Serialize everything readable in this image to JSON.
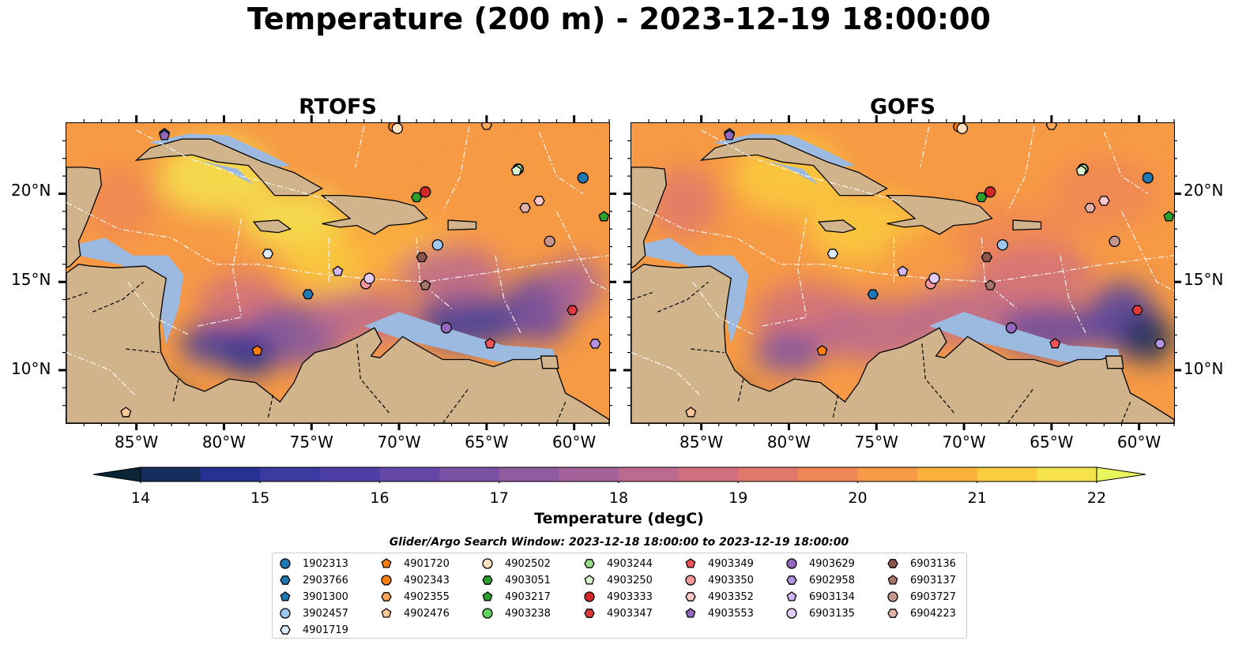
{
  "title": "Temperature (200 m) - 2023-12-19 18:00:00",
  "panels": [
    {
      "title": "RTOFS"
    },
    {
      "title": "GOFS"
    }
  ],
  "lat_ticks": [
    "20°N",
    "15°N",
    "10°N"
  ],
  "lon_ticks": [
    "85°W",
    "80°W",
    "75°W",
    "70°W",
    "65°W",
    "60°W"
  ],
  "colors": {
    "land": "#d2b48c",
    "shelf": "#9cb9e0",
    "colormap": [
      "#0a2536",
      "#142d5c",
      "#263192",
      "#3b3aa1",
      "#4e3fa6",
      "#6447a6",
      "#7a51a4",
      "#8f5aa0",
      "#a5619a",
      "#bb6a8f",
      "#d0707e",
      "#e0786b",
      "#ee8656",
      "#f79a45",
      "#fbb23d",
      "#f9cb3d",
      "#f5e24c",
      "#e8f55c"
    ]
  },
  "colorbar": {
    "ticks": [
      "14",
      "15",
      "16",
      "17",
      "18",
      "19",
      "20",
      "21",
      "22"
    ],
    "label": "Temperature (degC)"
  },
  "legend": {
    "title": "Glider/Argo Search Window: 2023-12-18 18:00:00 to 2023-12-19 18:00:00",
    "items": [
      {
        "label": "1902313",
        "marker": "circle",
        "color": "#1f77b4"
      },
      {
        "label": "2903766",
        "marker": "hexagon",
        "color": "#1f77b4"
      },
      {
        "label": "3901300",
        "marker": "pentagon",
        "color": "#1f77b4"
      },
      {
        "label": "3902457",
        "marker": "circle",
        "color": "#9ec8f0"
      },
      {
        "label": "4901719",
        "marker": "hexagon",
        "color": "#dcecff"
      },
      {
        "label": "4901720",
        "marker": "pentagon",
        "color": "#ff7f0e"
      },
      {
        "label": "4902343",
        "marker": "circle",
        "color": "#ff7f0e"
      },
      {
        "label": "4902355",
        "marker": "hexagon",
        "color": "#ffa55a"
      },
      {
        "label": "4902476",
        "marker": "pentagon",
        "color": "#ffc896"
      },
      {
        "label": "4902502",
        "marker": "circle",
        "color": "#ffe0c0"
      },
      {
        "label": "4903051",
        "marker": "hexagon",
        "color": "#2ca02c"
      },
      {
        "label": "4903217",
        "marker": "pentagon",
        "color": "#2ca02c"
      },
      {
        "label": "4903238",
        "marker": "circle",
        "color": "#5fd35f"
      },
      {
        "label": "4903244",
        "marker": "hexagon",
        "color": "#98df8a"
      },
      {
        "label": "4903250",
        "marker": "pentagon",
        "color": "#d6f5cf"
      },
      {
        "label": "4903333",
        "marker": "circle",
        "color": "#d62728"
      },
      {
        "label": "4903347",
        "marker": "hexagon",
        "color": "#e0393b"
      },
      {
        "label": "4903349",
        "marker": "pentagon",
        "color": "#f0545a"
      },
      {
        "label": "4903350",
        "marker": "circle",
        "color": "#f4979a"
      },
      {
        "label": "4903352",
        "marker": "hexagon",
        "color": "#ffc7c7"
      },
      {
        "label": "4903553",
        "marker": "pentagon",
        "color": "#9467bd"
      },
      {
        "label": "4903629",
        "marker": "circle",
        "color": "#9467bd"
      },
      {
        "label": "6902958",
        "marker": "hexagon",
        "color": "#b592df"
      },
      {
        "label": "6903134",
        "marker": "pentagon",
        "color": "#d2b5f0"
      },
      {
        "label": "6903135",
        "marker": "circle",
        "color": "#e4ccfa"
      },
      {
        "label": "6903136",
        "marker": "hexagon",
        "color": "#8c564b"
      },
      {
        "label": "6903137",
        "marker": "pentagon",
        "color": "#a8756b"
      },
      {
        "label": "6903727",
        "marker": "circle",
        "color": "#c4968d"
      },
      {
        "label": "6904223",
        "marker": "hexagon",
        "color": "#e2b2aa"
      }
    ]
  },
  "chart_data": {
    "type": "heatmap",
    "variable": "Temperature",
    "depth": "200 m",
    "time": "2023-12-19 18:00:00",
    "units": "degC",
    "vmin": 14,
    "vmax": 22,
    "xlim": [
      -89,
      -58
    ],
    "ylim": [
      7,
      24
    ],
    "panels": [
      "RTOFS",
      "GOFS"
    ],
    "x_ticks": [
      -85,
      -80,
      -75,
      -70,
      -65,
      -60
    ],
    "y_ticks": [
      10,
      15,
      20
    ],
    "floats": [
      {
        "id": "1902313",
        "lon": -59.5,
        "lat": 20.9
      },
      {
        "id": "2903766",
        "lon": -75.2,
        "lat": 14.3
      },
      {
        "id": "3901300",
        "lon": -83.4,
        "lat": 23.4
      },
      {
        "id": "3902457",
        "lon": -67.8,
        "lat": 17.1
      },
      {
        "id": "4901719",
        "lon": -77.5,
        "lat": 16.6
      },
      {
        "id": "4901720",
        "lon": -78.1,
        "lat": 11.1
      },
      {
        "id": "4902343",
        "lon": -70.3,
        "lat": 23.8
      },
      {
        "id": "4902355",
        "lon": -65.0,
        "lat": 23.9
      },
      {
        "id": "4902476",
        "lon": -85.6,
        "lat": 7.6
      },
      {
        "id": "4902502",
        "lon": -70.1,
        "lat": 23.7
      },
      {
        "id": "4903051",
        "lon": -69.0,
        "lat": 19.8
      },
      {
        "id": "4903217",
        "lon": -58.3,
        "lat": 18.7
      },
      {
        "id": "4903238",
        "lon": -63.2,
        "lat": 21.4
      },
      {
        "id": "4903244",
        "lon": -63.2,
        "lat": 21.4
      },
      {
        "id": "4903250",
        "lon": -63.3,
        "lat": 21.3
      },
      {
        "id": "4903333",
        "lon": -68.5,
        "lat": 20.1
      },
      {
        "id": "4903347",
        "lon": -60.1,
        "lat": 13.4
      },
      {
        "id": "4903349",
        "lon": -64.8,
        "lat": 11.5
      },
      {
        "id": "4903350",
        "lon": -71.9,
        "lat": 14.9
      },
      {
        "id": "4903352",
        "lon": -62.0,
        "lat": 19.6
      },
      {
        "id": "4903553",
        "lon": -83.4,
        "lat": 23.3
      },
      {
        "id": "4903629",
        "lon": -67.3,
        "lat": 12.4
      },
      {
        "id": "6902958",
        "lon": -58.8,
        "lat": 11.5
      },
      {
        "id": "6903134",
        "lon": -73.5,
        "lat": 15.6
      },
      {
        "id": "6903135",
        "lon": -71.7,
        "lat": 15.2
      },
      {
        "id": "6903136",
        "lon": -68.7,
        "lat": 16.4
      },
      {
        "id": "6903137",
        "lon": -68.5,
        "lat": 14.8
      },
      {
        "id": "6903727",
        "lon": -61.4,
        "lat": 17.3
      },
      {
        "id": "6904223",
        "lon": -62.8,
        "lat": 19.2
      }
    ]
  }
}
